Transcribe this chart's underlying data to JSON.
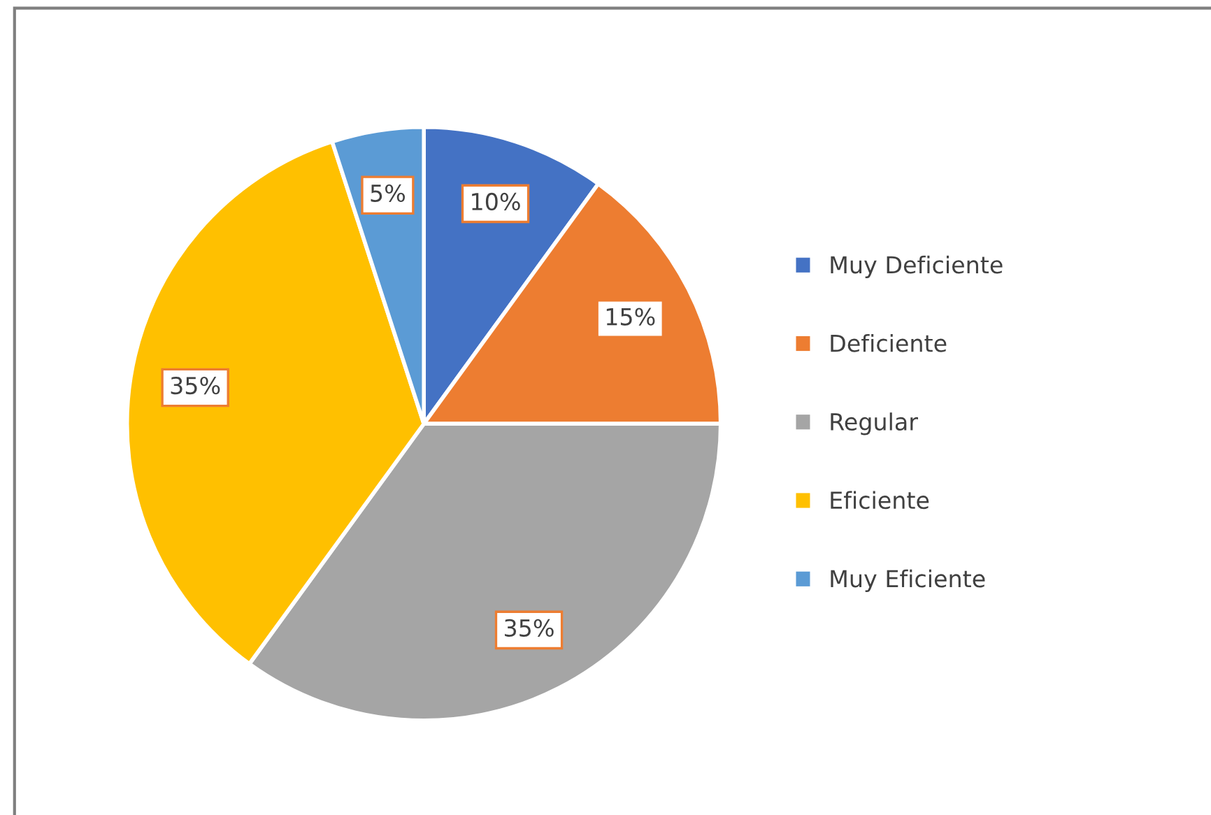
{
  "chart_data": {
    "type": "pie",
    "categories": [
      "Muy Deficiente",
      "Deficiente",
      "Regular",
      "Eficiente",
      "Muy Eficiente"
    ],
    "values": [
      10,
      15,
      35,
      35,
      5
    ],
    "value_labels": [
      "10%",
      "15%",
      "35%",
      "35%",
      "5%"
    ],
    "colors": [
      "#4472c4",
      "#ed7d31",
      "#a5a5a5",
      "#ffc000",
      "#5b9bd5"
    ],
    "legend": "right"
  }
}
